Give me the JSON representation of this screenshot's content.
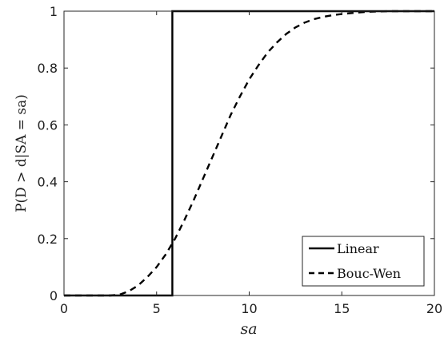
{
  "chart_data": {
    "type": "line",
    "xlabel": "sa",
    "ylabel": "P(D > d|SA = sa)",
    "xlim": [
      0,
      20
    ],
    "ylim": [
      0,
      1
    ],
    "xticks": [
      0,
      5,
      10,
      15,
      20
    ],
    "yticks": [
      0,
      0.2,
      0.4,
      0.6,
      0.8,
      1
    ],
    "xtick_labels": [
      "0",
      "5",
      "10",
      "15",
      "20"
    ],
    "ytick_labels": [
      "0",
      "0.2",
      "0.4",
      "0.6",
      "0.8",
      "1"
    ],
    "grid": false,
    "legend_position": "bottom-right",
    "series": [
      {
        "name": "Linear",
        "style": "solid",
        "color": "#000000",
        "x": [
          0,
          5.85,
          5.85,
          20
        ],
        "y": [
          0,
          0,
          1,
          1
        ]
      },
      {
        "name": "Bouc-Wen",
        "style": "dashed",
        "color": "#000000",
        "x": [
          0,
          2.5,
          3,
          3.5,
          4,
          4.5,
          5,
          5.5,
          6,
          6.5,
          7,
          7.5,
          8,
          8.5,
          9,
          9.5,
          10,
          10.5,
          11,
          11.5,
          12,
          12.5,
          13,
          13.5,
          14,
          14.5,
          15,
          15.5,
          16,
          16.5,
          17,
          17.5,
          18,
          19,
          20
        ],
        "y": [
          0,
          0,
          0.003,
          0.015,
          0.035,
          0.065,
          0.1,
          0.145,
          0.2,
          0.265,
          0.335,
          0.41,
          0.485,
          0.56,
          0.635,
          0.7,
          0.76,
          0.81,
          0.855,
          0.89,
          0.92,
          0.943,
          0.96,
          0.972,
          0.98,
          0.986,
          0.99,
          0.993,
          0.996,
          0.998,
          0.999,
          1,
          1,
          1,
          1
        ]
      }
    ]
  }
}
